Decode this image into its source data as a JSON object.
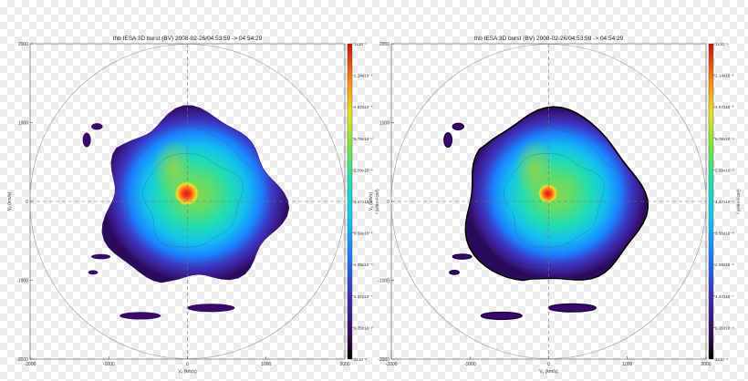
{
  "chart_data": [
    {
      "type": "heatmap",
      "title": "thb IESA 3D burst (BV) 2008-02-26/04:53:59 -> 04:54:29",
      "xlabel": "Vₓ (km/s)",
      "ylabel": "Vᵧ (km/s)",
      "xlim": [
        -2000,
        2000
      ],
      "ylim": [
        -2000,
        2000
      ],
      "x_ticks": [
        "-2000",
        "-1000",
        "0",
        "1000",
        "2000"
      ],
      "y_ticks": [
        "-2000",
        "-1000",
        "0",
        "1000",
        "2000"
      ],
      "colorbar_label": "f (s³/km³/cm³)",
      "colorbar_ticks": [
        "1x10⁻¹",
        "2.14x10⁻²",
        "4.57x10⁻³",
        "9.78x10⁻⁴",
        "2.09x10⁻⁴",
        "4.47x10⁻⁵",
        "9.56x10⁻⁶",
        "2.05x10⁻⁶",
        "4.37x10⁻⁷",
        "9.35x10⁻⁸",
        "2x10⁻⁸"
      ],
      "grid": "dashed zero lines",
      "smoothed": false
    },
    {
      "type": "heatmap",
      "title": "thb IESA 3D burst (BV) 2008-02-26/04:53:59 -> 04:54:29",
      "xlabel": "Vₓ (km/s)",
      "ylabel": "Vᵧ (km/s)",
      "xlim": [
        -2000,
        2000
      ],
      "ylim": [
        -2000,
        2000
      ],
      "x_ticks": [
        "-2000",
        "-1000",
        "0",
        "1000",
        "2000"
      ],
      "y_ticks": [
        "-2000",
        "-1000",
        "0",
        "1000",
        "2000"
      ],
      "colorbar_label": "f (s³/km³/cm³)",
      "colorbar_ticks": [
        "1x10⁻¹",
        "2.14x10⁻²",
        "4.57x10⁻³",
        "9.78x10⁻⁴",
        "2.09x10⁻⁴",
        "4.47x10⁻⁵",
        "9.56x10⁻⁶",
        "2.05x10⁻⁶",
        "4.37x10⁻⁷",
        "9.35x10⁻⁸",
        "2x10⁻⁸"
      ],
      "grid": "dashed zero lines",
      "smoothed": true
    }
  ]
}
